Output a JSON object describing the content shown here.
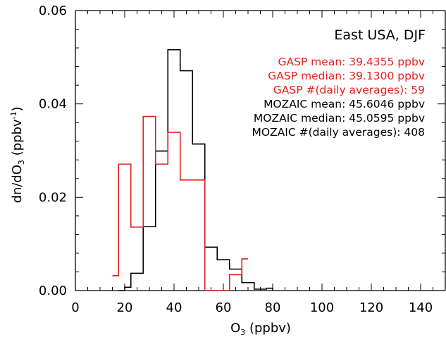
{
  "chart_data": {
    "type": "step-histogram",
    "title": "East USA, DJF",
    "xlabel": "O",
    "xlabel_subscript": "3",
    "xlabel_suffix": " (ppbv)",
    "ylabel": "dn/dO",
    "ylabel_subscript": "3",
    "ylabel_suffix": " (ppbv",
    "ylabel_superscript": "-1",
    "ylabel_close": ")",
    "xlim": [
      0,
      150
    ],
    "ylim": [
      0,
      0.06
    ],
    "xticks": [
      0,
      20,
      40,
      60,
      80,
      100,
      120,
      140
    ],
    "xtick_labels": [
      "0",
      "20",
      "40",
      "60",
      "80",
      "100",
      "120",
      "140"
    ],
    "yticks": [
      0,
      0.02,
      0.04,
      0.06
    ],
    "ytick_labels": [
      "0.00",
      "0.02",
      "0.04",
      "0.06"
    ],
    "grid": false,
    "annotations": [
      {
        "text": "GASP mean: 39.4355 ppbv",
        "color": "#e0201c"
      },
      {
        "text": "GASP median: 39.1300 ppbv",
        "color": "#e0201c"
      },
      {
        "text": "GASP #(daily averages): 59",
        "color": "#e0201c"
      },
      {
        "text": "MOZAIC mean: 45.6046 ppbv",
        "color": "#000000"
      },
      {
        "text": "MOZAIC median: 45.0595 ppbv",
        "color": "#000000"
      },
      {
        "text": "MOZAIC #(daily averages): 408",
        "color": "#000000"
      }
    ],
    "series": [
      {
        "color": "#000000",
        "points": [
          [
            17.5,
            0.0
          ],
          [
            20.0,
            0.0
          ],
          [
            20.0,
            0.0007
          ],
          [
            22.5,
            0.0007
          ],
          [
            22.5,
            0.0037
          ],
          [
            27.5,
            0.0037
          ],
          [
            27.5,
            0.0137
          ],
          [
            32.5,
            0.0137
          ],
          [
            32.5,
            0.0299
          ],
          [
            37.5,
            0.0299
          ],
          [
            37.5,
            0.0516
          ],
          [
            42.5,
            0.0516
          ],
          [
            42.5,
            0.0471
          ],
          [
            47.5,
            0.0471
          ],
          [
            47.5,
            0.0314
          ],
          [
            52.5,
            0.0314
          ],
          [
            52.5,
            0.0093
          ],
          [
            57.5,
            0.0093
          ],
          [
            57.5,
            0.0066
          ],
          [
            62.5,
            0.0066
          ],
          [
            62.5,
            0.0046
          ],
          [
            67.5,
            0.0046
          ],
          [
            67.5,
            0.0017
          ],
          [
            72.5,
            0.0017
          ],
          [
            72.5,
            0.0003
          ],
          [
            77.5,
            0.0003
          ],
          [
            77.5,
            0.0005
          ],
          [
            80.0,
            0.0005
          ],
          [
            80.0,
            0.0
          ]
        ]
      },
      {
        "color": "#e0201c",
        "points": [
          [
            15.0,
            0.0032
          ],
          [
            17.5,
            0.0032
          ],
          [
            17.5,
            0.0271
          ],
          [
            22.5,
            0.0271
          ],
          [
            22.5,
            0.0136
          ],
          [
            27.5,
            0.0136
          ],
          [
            27.5,
            0.0373
          ],
          [
            32.5,
            0.0373
          ],
          [
            32.5,
            0.0271
          ],
          [
            37.5,
            0.0271
          ],
          [
            37.5,
            0.0339
          ],
          [
            42.5,
            0.0339
          ],
          [
            42.5,
            0.0237
          ],
          [
            52.5,
            0.0237
          ],
          [
            52.5,
            0.0
          ],
          [
            62.5,
            0.0
          ],
          [
            62.5,
            0.0034
          ],
          [
            67.5,
            0.0034
          ],
          [
            67.5,
            0.0068
          ],
          [
            70.0,
            0.0068
          ]
        ]
      }
    ]
  }
}
